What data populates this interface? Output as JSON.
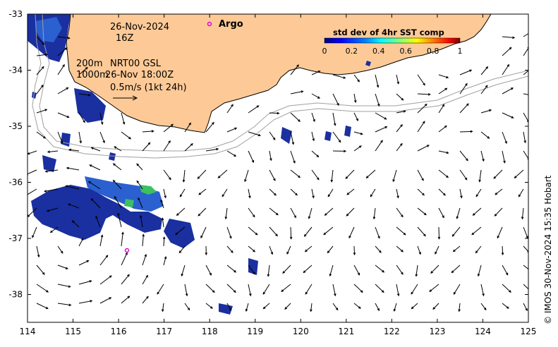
{
  "map": {
    "date_label": "26-Nov-2024",
    "hour_label": "16Z",
    "argo_label": "Argo",
    "depth_200": "200m",
    "depth_1000": "1000m",
    "current_source": "NRT00 GSL",
    "current_time": "26-Nov 18:00Z",
    "scale_label": "0.5m/s (1kt 24h)",
    "colorbar": {
      "title": "std dev of 4hr SST comp",
      "ticks": [
        "0",
        "0.2",
        "0.4",
        "0.6",
        "0.8",
        "1"
      ],
      "colors": [
        "#00007f",
        "#0000ff",
        "#007fff",
        "#00ffff",
        "#7fff7f",
        "#ffff00",
        "#ff7f00",
        "#ff0000",
        "#7f0000"
      ]
    },
    "x_ticks": [
      "114",
      "115",
      "116",
      "117",
      "118",
      "119",
      "120",
      "121",
      "122",
      "123",
      "124",
      "125"
    ],
    "y_ticks": [
      "-33",
      "-34",
      "-35",
      "-36",
      "-37",
      "-38"
    ],
    "credit": "© IMOS 30-Nov-2024 15:35 Hobart",
    "colors": {
      "land": "#fdca97",
      "argo": "#e000e0",
      "sst_patch": "#1a2fa0",
      "sst_patch_alt": "#2a60d0",
      "sst_green": "#3cc060",
      "bathy": "#a0a0a0"
    }
  }
}
